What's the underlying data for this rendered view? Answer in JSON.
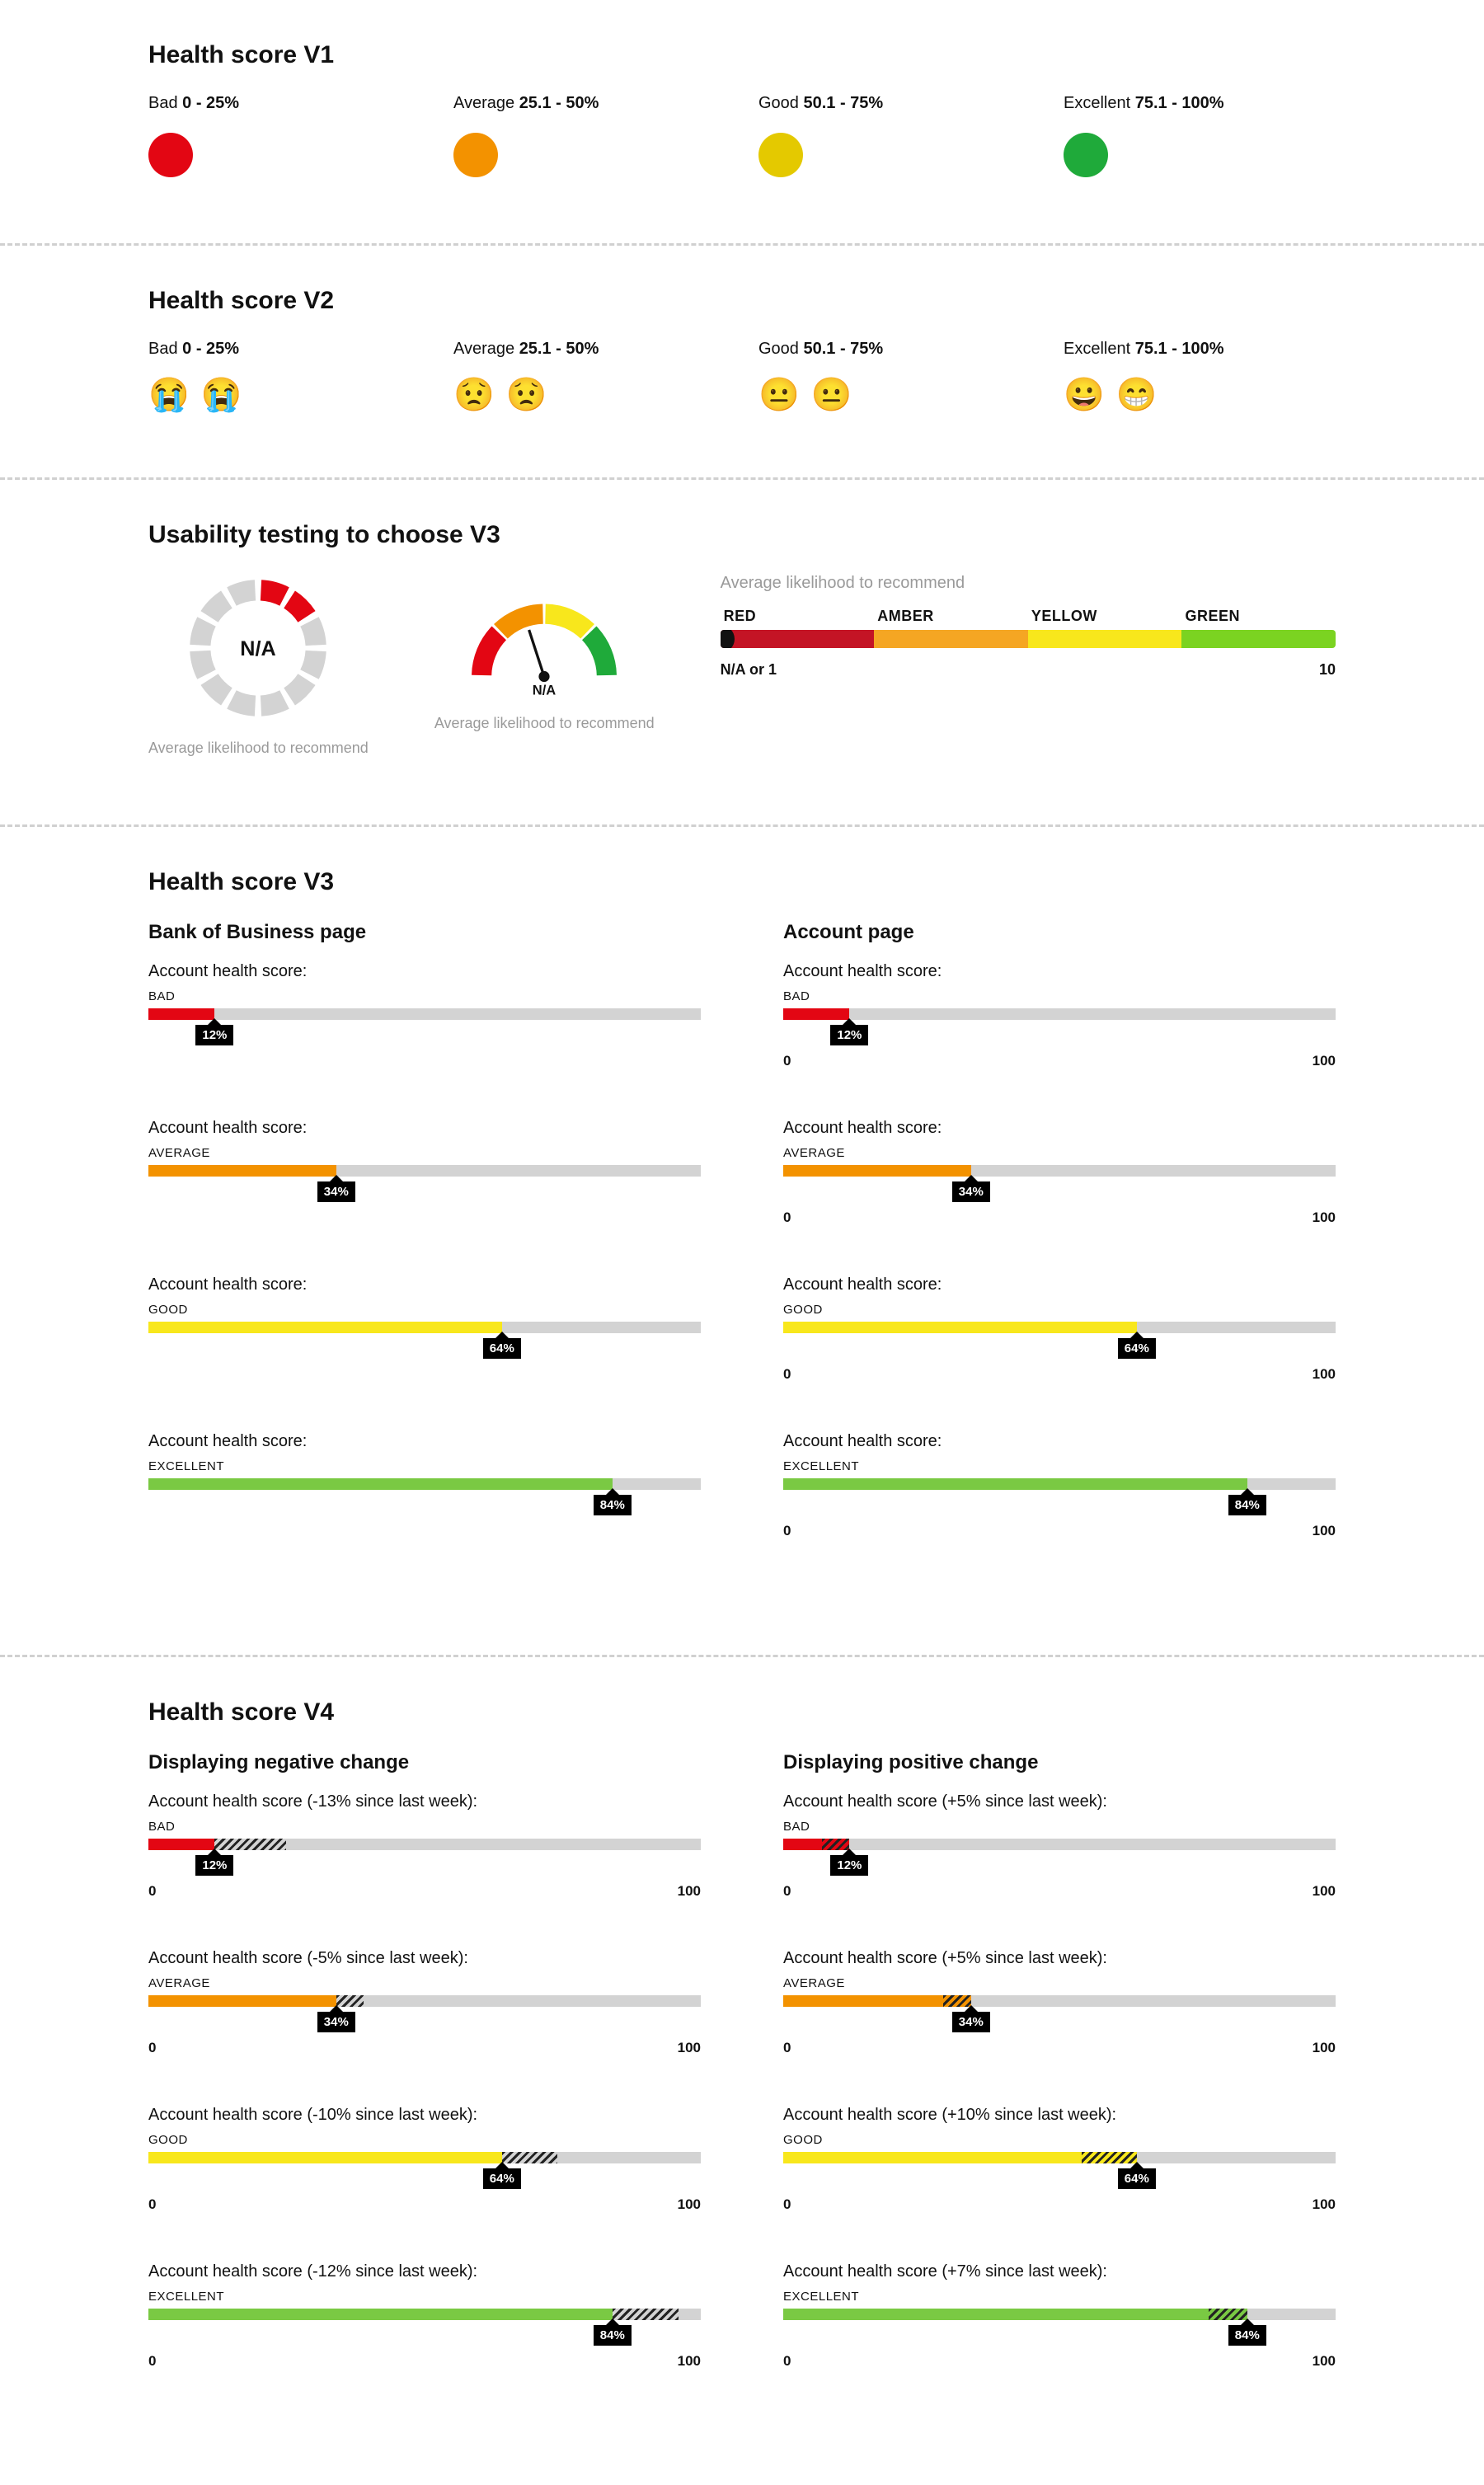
{
  "colors": {
    "bad": "#e30613",
    "average": "#f39200",
    "good": "#e4c900",
    "excellent": "#1faa3a",
    "excellent_bar": "#7ac943",
    "track": "#d3d3d3",
    "spectrum_red": "#c41425",
    "spectrum_amber": "#f5a623",
    "spectrum_yellow": "#f8e71c",
    "spectrum_green": "#7bd321"
  },
  "v1": {
    "title": "Health score V1",
    "levels": [
      {
        "label": "Bad",
        "range": "0 - 25%",
        "color": "#e30613"
      },
      {
        "label": "Average",
        "range": "25.1 - 50%",
        "color": "#f39200"
      },
      {
        "label": "Good",
        "range": "50.1 - 75%",
        "color": "#e4c900"
      },
      {
        "label": "Excellent",
        "range": "75.1 - 100%",
        "color": "#1faa3a"
      }
    ]
  },
  "v2": {
    "title": "Health score V2",
    "levels": [
      {
        "label": "Bad",
        "range": "0 - 25%",
        "emoji": [
          "😭",
          "😭"
        ]
      },
      {
        "label": "Average",
        "range": "25.1 - 50%",
        "emoji": [
          "😟",
          "😟"
        ]
      },
      {
        "label": "Good",
        "range": "50.1 - 75%",
        "emoji": [
          "😐",
          "😐"
        ]
      },
      {
        "label": "Excellent",
        "range": "75.1 - 100%",
        "emoji": [
          "😀",
          "😁"
        ]
      }
    ]
  },
  "usability": {
    "title": "Usability testing to choose V3",
    "ring_label": "N/A",
    "ring_caption": "Average likelihood to recommend",
    "gauge_label": "N/A",
    "gauge_caption": "Average likelihood to recommend",
    "spectrum_title": "Average likelihood to recommend",
    "spectrum": {
      "labels": [
        "RED",
        "AMBER",
        "YELLOW",
        "GREEN"
      ],
      "colors": [
        "#c41425",
        "#f5a623",
        "#f8e71c",
        "#7bd321"
      ],
      "left_end": "N/A or 1",
      "right_end": "10"
    }
  },
  "v3": {
    "title": "Health score V3",
    "left_heading": "Bank of Business page",
    "right_heading": "Account page",
    "label": "Account health score:",
    "show_scale_left": false,
    "show_scale_right": true,
    "scale_min": "0",
    "scale_max": "100",
    "rows": [
      {
        "grade": "BAD",
        "pct": 12,
        "color": "#e30613"
      },
      {
        "grade": "AVERAGE",
        "pct": 34,
        "color": "#f39200"
      },
      {
        "grade": "GOOD",
        "pct": 64,
        "color": "#f8e71c"
      },
      {
        "grade": "EXCELLENT",
        "pct": 84,
        "color": "#7ac943"
      }
    ]
  },
  "v4": {
    "title": "Health score V4",
    "left_heading": "Displaying negative change",
    "right_heading": "Displaying positive change",
    "scale_min": "0",
    "scale_max": "100",
    "left": [
      {
        "label": "Account health score (-13% since last week):",
        "grade": "BAD",
        "pct": 12,
        "delta": -13,
        "color": "#e30613"
      },
      {
        "label": "Account health score (-5% since last week):",
        "grade": "AVERAGE",
        "pct": 34,
        "delta": -5,
        "color": "#f39200"
      },
      {
        "label": "Account health score (-10% since last week):",
        "grade": "GOOD",
        "pct": 64,
        "delta": -10,
        "color": "#f8e71c"
      },
      {
        "label": "Account health score (-12% since last week):",
        "grade": "EXCELLENT",
        "pct": 84,
        "delta": -12,
        "color": "#7ac943"
      }
    ],
    "right": [
      {
        "label": "Account health score (+5% since last week):",
        "grade": "BAD",
        "pct": 12,
        "delta": 5,
        "color": "#e30613"
      },
      {
        "label": "Account health score (+5% since last week):",
        "grade": "AVERAGE",
        "pct": 34,
        "delta": 5,
        "color": "#f39200"
      },
      {
        "label": "Account health score (+10% since last week):",
        "grade": "GOOD",
        "pct": 64,
        "delta": 10,
        "color": "#f8e71c"
      },
      {
        "label": "Account health score (+7% since last week):",
        "grade": "EXCELLENT",
        "pct": 84,
        "delta": 7,
        "color": "#7ac943"
      }
    ]
  }
}
